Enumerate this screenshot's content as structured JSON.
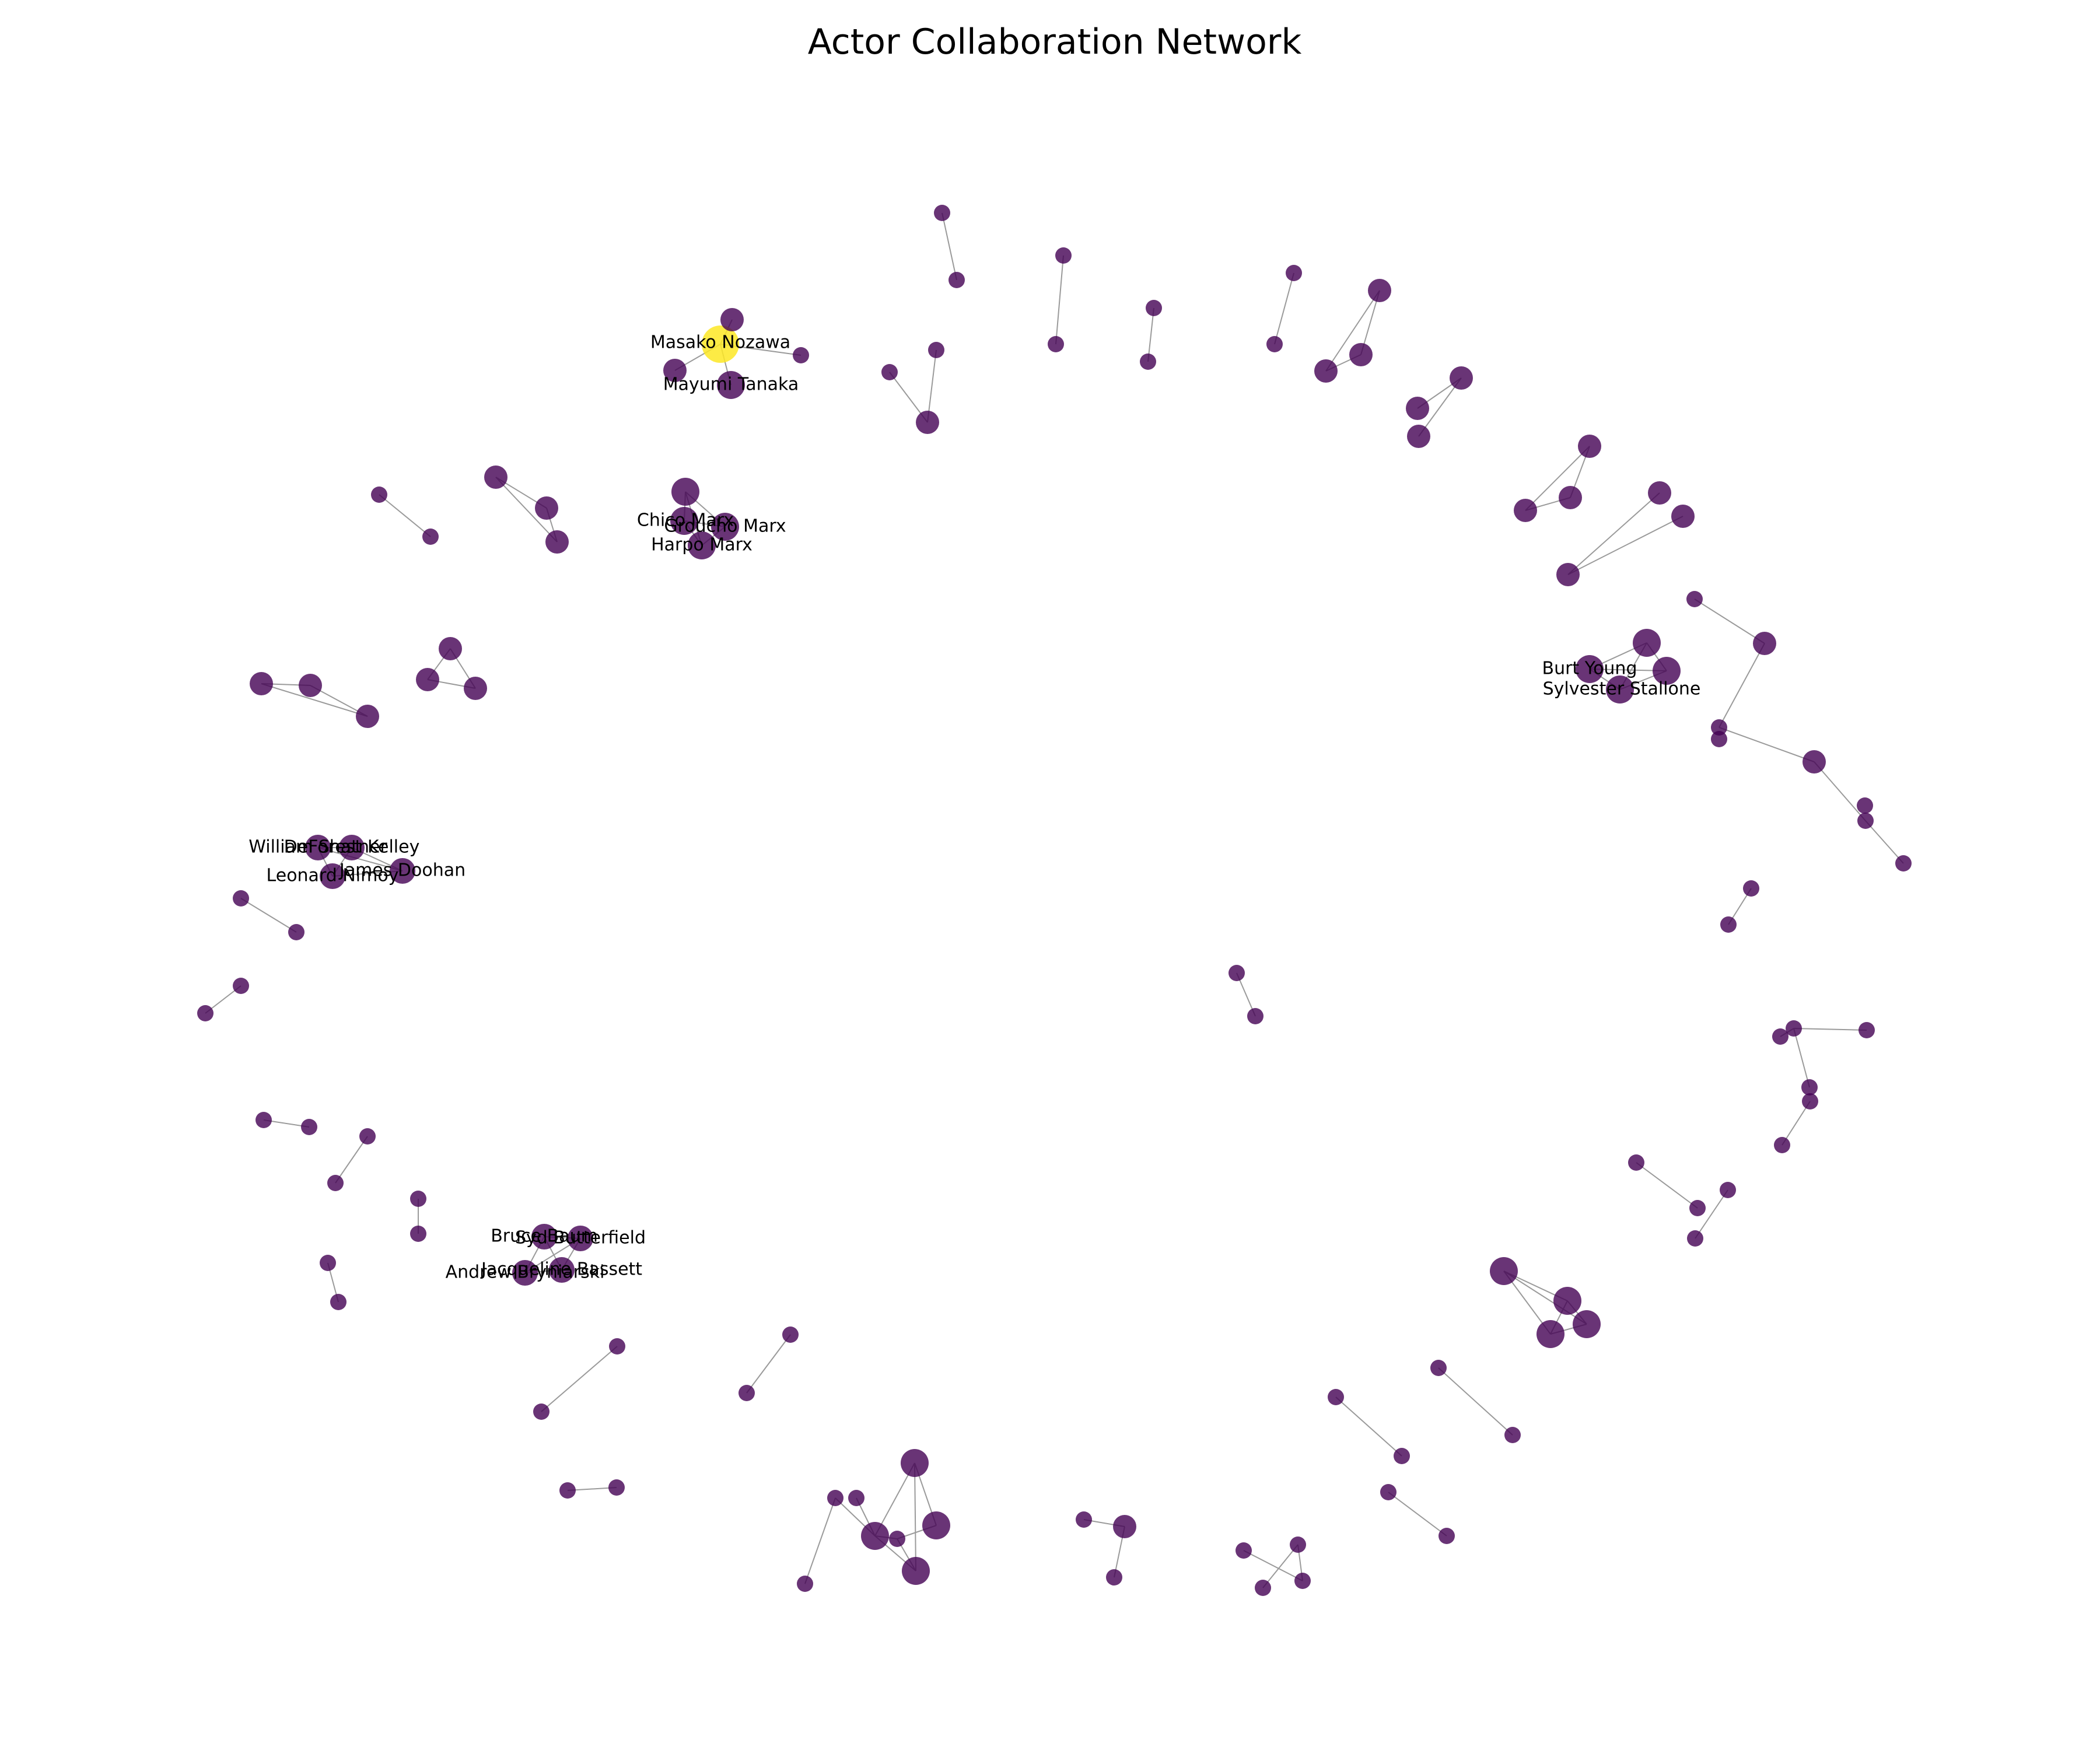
{
  "title": "Actor Collaboration Network",
  "colors": {
    "node": "#440154",
    "highlight": "#fde725",
    "edge": "#9a9a9a"
  },
  "labels": [
    "Masako Nozawa",
    "Mayumi Tanaka",
    "Chico Marx",
    "Groucho Marx",
    "Harpo Marx",
    "Burt Young",
    "Sylvester Stallone",
    "William Shatner",
    "DeForest Kelley",
    "Leonard Nimoy",
    "James Doohan",
    "Bruce Baum",
    "Jacqueline Bassett",
    "Andrew Bryniarski",
    "Syd Butterfield"
  ]
}
